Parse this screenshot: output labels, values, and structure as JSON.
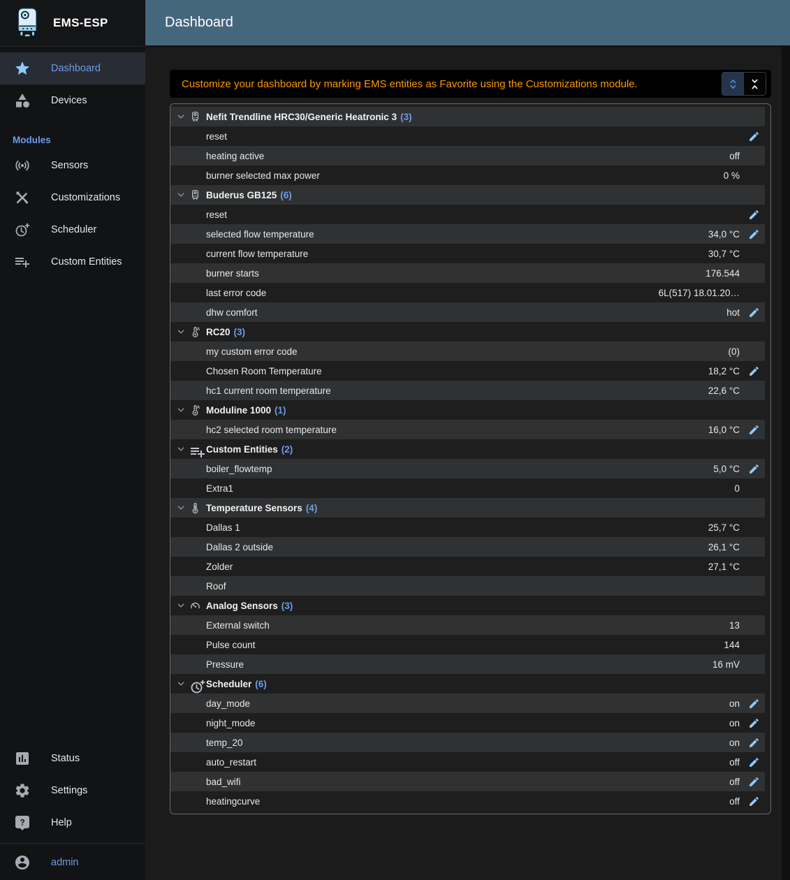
{
  "app": {
    "name": "EMS-ESP"
  },
  "header": {
    "title": "Dashboard"
  },
  "colors": {
    "appbar_teal": "#45677c",
    "accent_blue": "#6d9ce8",
    "icon_light_blue": "#90caf9",
    "banner_orange": "#ff9800",
    "stripe_light": "#303132",
    "stripe_dark": "#1e1e1e"
  },
  "sidebar": {
    "items": [
      {
        "label": "Dashboard",
        "icon": "star-icon",
        "selected": true
      },
      {
        "label": "Devices",
        "icon": "category-icon",
        "selected": false
      }
    ],
    "modules_header": "Modules",
    "module_items": [
      {
        "label": "Sensors",
        "icon": "sensors-icon"
      },
      {
        "label": "Customizations",
        "icon": "tools-icon"
      },
      {
        "label": "Scheduler",
        "icon": "clock-plus-icon"
      },
      {
        "label": "Custom Entities",
        "icon": "playlist-add-icon"
      }
    ],
    "bottom_items": [
      {
        "label": "Status",
        "icon": "bar-chart-icon"
      },
      {
        "label": "Settings",
        "icon": "gear-icon"
      },
      {
        "label": "Help",
        "icon": "help-bubble-icon"
      }
    ],
    "user": {
      "label": "admin",
      "icon": "account-icon"
    }
  },
  "banner": {
    "message": "Customize your dashboard by marking EMS entities as Favorite using the Customizations module.",
    "buttons": [
      {
        "name": "expand-all-button",
        "icon": "unfold-more-icon",
        "selected": true
      },
      {
        "name": "collapse-all-button",
        "icon": "unfold-less-icon",
        "selected": false
      }
    ]
  },
  "dashboard": {
    "groups": [
      {
        "name": "Nefit Trendline HRC30/Generic Heatronic 3",
        "count": "(3)",
        "icon": "boiler-icon",
        "entities": [
          {
            "name": "reset",
            "value": "",
            "editable": true
          },
          {
            "name": "heating active",
            "value": "off"
          },
          {
            "name": "burner selected max power",
            "value": "0 %"
          }
        ]
      },
      {
        "name": "Buderus GB125",
        "count": "(6)",
        "icon": "boiler-icon",
        "entities": [
          {
            "name": "reset",
            "value": "",
            "editable": true
          },
          {
            "name": "selected flow temperature",
            "value": "34,0 °C",
            "editable": true
          },
          {
            "name": "current flow temperature",
            "value": "30,7 °C"
          },
          {
            "name": "burner starts",
            "value": "176.544"
          },
          {
            "name": "last error code",
            "value": "6L(517) 18.01.20…"
          },
          {
            "name": "dhw comfort",
            "value": "hot",
            "editable": true
          }
        ]
      },
      {
        "name": "RC20",
        "count": "(3)",
        "icon": "thermostat-auto-icon",
        "entities": [
          {
            "name": "my custom error code",
            "value": "(0)"
          },
          {
            "name": "Chosen Room Temperature",
            "value": "18,2 °C",
            "editable": true
          },
          {
            "name": "hc1 current room temperature",
            "value": "22,6 °C"
          }
        ]
      },
      {
        "name": "Moduline 1000",
        "count": "(1)",
        "icon": "thermostat-auto-icon",
        "entities": [
          {
            "name": "hc2 selected room temperature",
            "value": "16,0 °C",
            "editable": true
          }
        ]
      },
      {
        "name": "Custom Entities",
        "count": "(2)",
        "icon": "playlist-add-icon",
        "entities": [
          {
            "name": "boiler_flowtemp",
            "value": "5,0 °C",
            "editable": true
          },
          {
            "name": "Extra1",
            "value": "0"
          }
        ]
      },
      {
        "name": "Temperature Sensors",
        "count": "(4)",
        "icon": "thermometer-icon",
        "entities": [
          {
            "name": "Dallas 1",
            "value": "25,7 °C"
          },
          {
            "name": "Dallas 2 outside",
            "value": "26,1 °C"
          },
          {
            "name": "Zolder",
            "value": "27,1 °C"
          },
          {
            "name": "Roof",
            "value": ""
          }
        ]
      },
      {
        "name": "Analog Sensors",
        "count": "(3)",
        "icon": "gauge-icon",
        "entities": [
          {
            "name": "External switch",
            "value": "13"
          },
          {
            "name": "Pulse count",
            "value": "144"
          },
          {
            "name": "Pressure",
            "value": "16 mV"
          }
        ]
      },
      {
        "name": "Scheduler",
        "count": "(6)",
        "icon": "clock-plus-icon",
        "entities": [
          {
            "name": "day_mode",
            "value": "on",
            "editable": true
          },
          {
            "name": "night_mode",
            "value": "on",
            "editable": true
          },
          {
            "name": "temp_20",
            "value": "on",
            "editable": true
          },
          {
            "name": "auto_restart",
            "value": "off",
            "editable": true
          },
          {
            "name": "bad_wifi",
            "value": "off",
            "editable": true
          },
          {
            "name": "heatingcurve",
            "value": "off",
            "editable": true
          }
        ]
      }
    ]
  }
}
